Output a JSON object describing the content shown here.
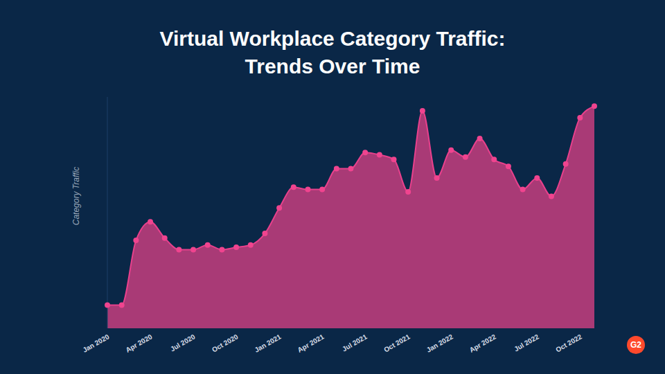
{
  "chart_data": {
    "type": "area",
    "title": "Virtual Workplace Category Traffic:\nTrends Over Time",
    "y_label": "Category Traffic",
    "categories": [
      "Jan 2020",
      null,
      null,
      "Apr 2020",
      null,
      null,
      "Jul 2020",
      null,
      null,
      "Oct 2020",
      null,
      null,
      "Jan 2021",
      null,
      null,
      "Apr 2021",
      null,
      null,
      "Jul 2021",
      null,
      null,
      "Oct 2021",
      null,
      null,
      "Jan 2022",
      null,
      null,
      "Apr 2022",
      null,
      null,
      "Jul 2022",
      null,
      null,
      "Oct 2022",
      null
    ],
    "values": [
      10,
      10,
      38,
      46,
      39,
      34,
      34,
      36,
      34,
      35,
      36,
      41,
      52,
      61,
      60,
      60,
      69,
      69,
      76,
      75,
      73,
      59,
      94,
      65,
      77,
      74,
      82,
      73,
      70,
      60,
      65,
      57,
      71,
      91,
      96
    ],
    "color": "#a93a76",
    "ylim": [
      0,
      100
    ],
    "grid": false,
    "tick_labels": "x",
    "marker": "circle",
    "line_style": "solid",
    "annotations": [
      "G2"
    ]
  }
}
